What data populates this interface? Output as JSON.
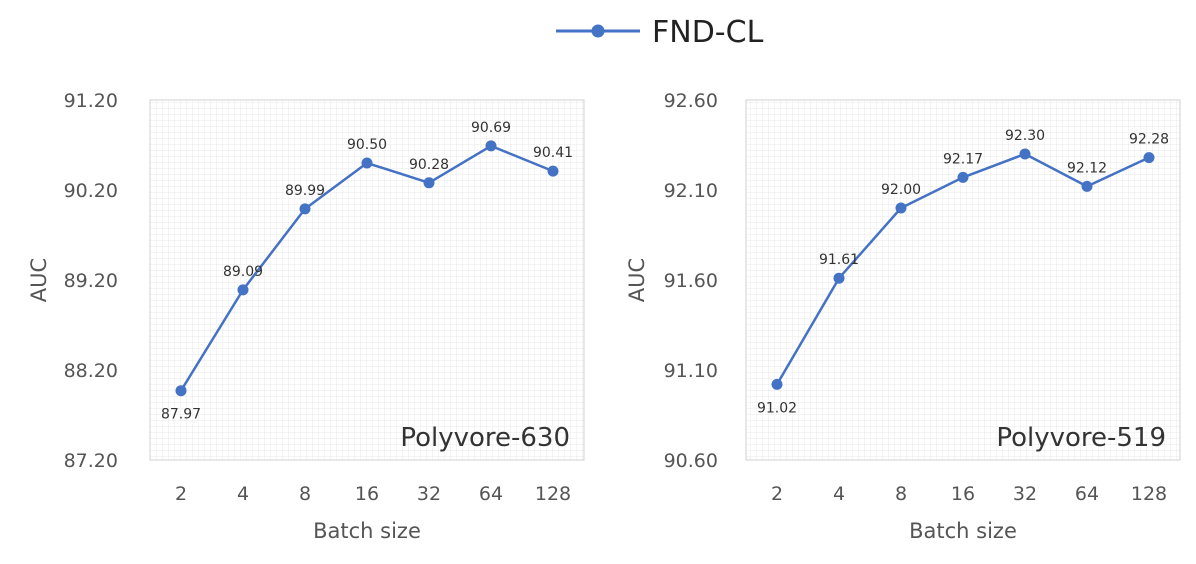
{
  "legend": {
    "label": "FND-CL",
    "color": "#4472C4"
  },
  "chart_data": [
    {
      "type": "line",
      "title": "",
      "panel_label": "Polyvore-630",
      "xlabel": "Batch size",
      "ylabel": "AUC",
      "categories": [
        "2",
        "4",
        "8",
        "16",
        "32",
        "64",
        "128"
      ],
      "series": [
        {
          "name": "FND-CL",
          "values": [
            87.97,
            89.09,
            89.99,
            90.5,
            90.28,
            90.69,
            90.41
          ],
          "labels": [
            "87.97",
            "89.09",
            "89.99",
            "90.50",
            "90.28",
            "90.69",
            "90.41"
          ]
        }
      ],
      "ylim": [
        87.2,
        91.2
      ],
      "yticks": [
        "87.20",
        "88.20",
        "89.20",
        "90.20",
        "91.20"
      ],
      "label_below": [
        true,
        false,
        false,
        false,
        false,
        false,
        false
      ],
      "grid": true
    },
    {
      "type": "line",
      "title": "",
      "panel_label": "Polyvore-519",
      "xlabel": "Batch size",
      "ylabel": "AUC",
      "categories": [
        "2",
        "4",
        "8",
        "16",
        "32",
        "64",
        "128"
      ],
      "series": [
        {
          "name": "FND-CL",
          "values": [
            91.02,
            91.61,
            92.0,
            92.17,
            92.3,
            92.12,
            92.28
          ],
          "labels": [
            "91.02",
            "91.61",
            "92.00",
            "92.17",
            "92.30",
            "92.12",
            "92.28"
          ]
        }
      ],
      "ylim": [
        90.6,
        92.6
      ],
      "yticks": [
        "90.60",
        "91.10",
        "91.60",
        "92.10",
        "92.60"
      ],
      "label_below": [
        true,
        false,
        false,
        false,
        false,
        false,
        false
      ],
      "grid": true
    }
  ]
}
